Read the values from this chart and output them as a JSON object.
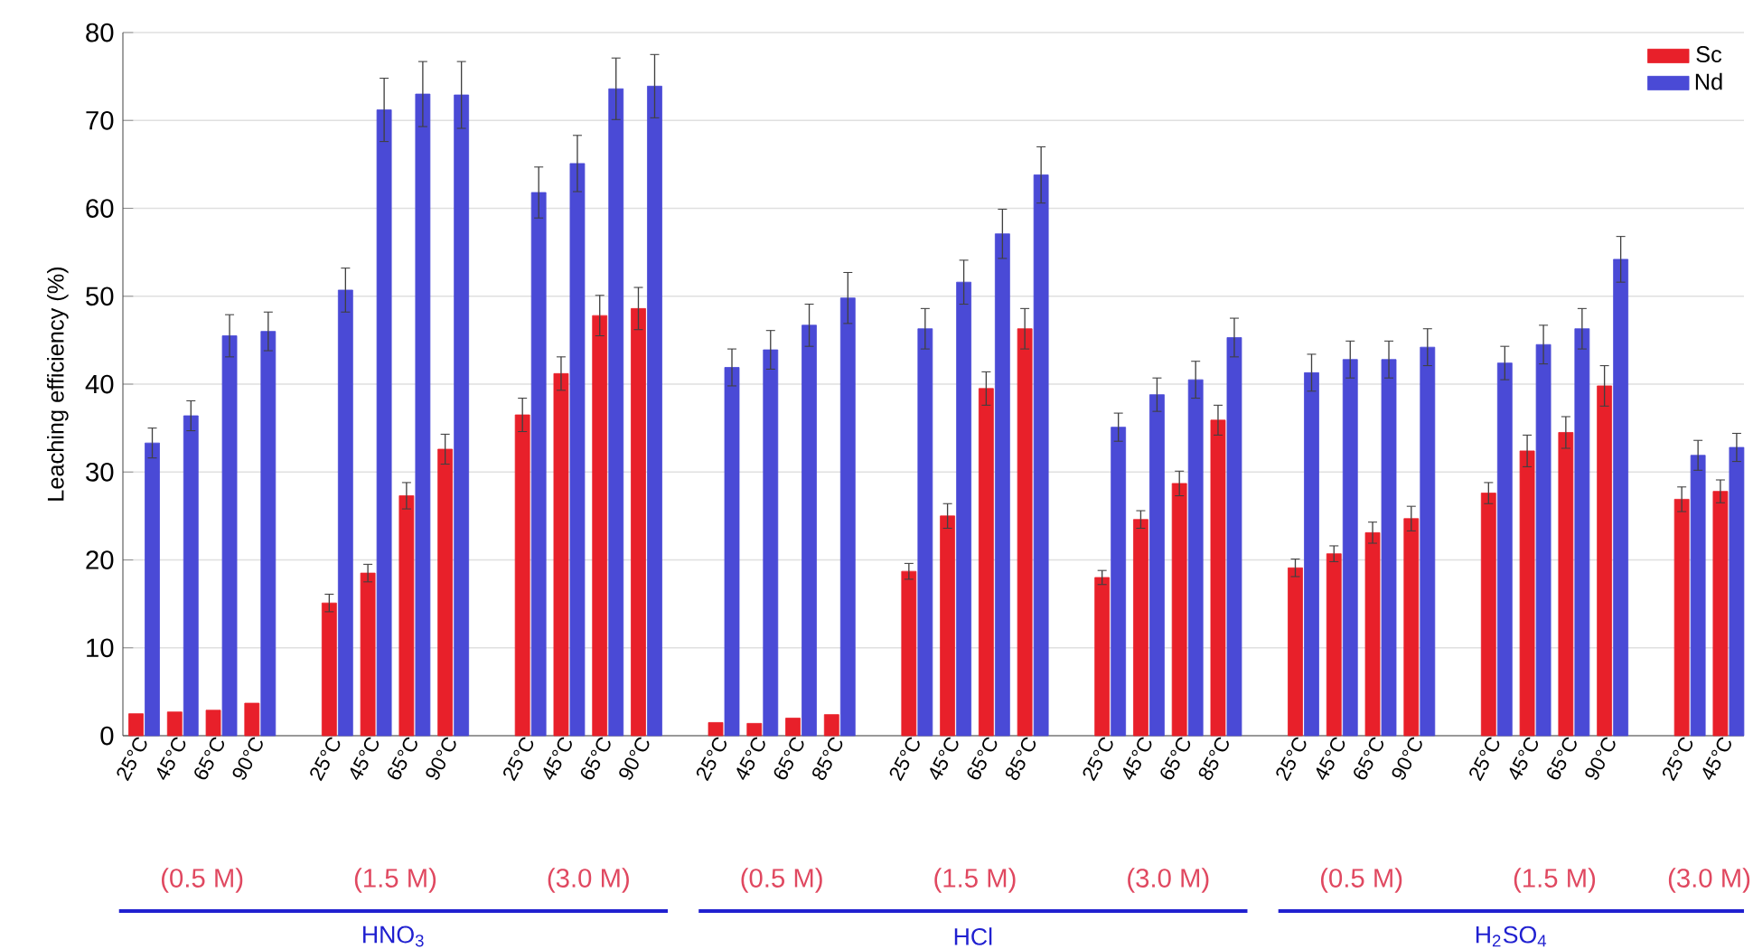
{
  "chart_data": {
    "type": "bar",
    "ylabel": "Leaching efficiency (%)",
    "categories": [
      "25°C",
      "45°C",
      "65°C",
      "90°C",
      null,
      "25°C",
      "45°C",
      "65°C",
      "90°C",
      null,
      "25°C",
      "45°C",
      "65°C",
      "90°C",
      null,
      "25°C",
      "45°C",
      "65°C",
      "85°C",
      null,
      "25°C",
      "45°C",
      "65°C",
      "85°C",
      null,
      "25°C",
      "45°C",
      "65°C",
      "85°C",
      null,
      "25°C",
      "45°C",
      "65°C",
      "90°C",
      null,
      "25°C",
      "45°C",
      "65°C",
      "90°C",
      null,
      "25°C",
      "45°C"
    ],
    "series": [
      {
        "name": "Sc",
        "color": "#e8202a",
        "values": [
          2.5,
          2.7,
          2.9,
          3.7,
          null,
          15.1,
          18.5,
          27.3,
          32.6,
          null,
          36.5,
          41.2,
          47.8,
          48.6,
          null,
          1.5,
          1.4,
          2.0,
          2.4,
          null,
          18.7,
          25.0,
          39.5,
          46.3,
          null,
          18.0,
          24.6,
          28.7,
          35.9,
          null,
          19.1,
          20.7,
          23.1,
          24.7,
          null,
          27.6,
          32.4,
          34.5,
          39.8,
          null,
          26.9,
          27.8
        ],
        "errors": [
          null,
          null,
          null,
          null,
          null,
          1.0,
          1.0,
          1.5,
          1.7,
          null,
          1.9,
          1.9,
          2.3,
          2.4,
          null,
          null,
          null,
          null,
          null,
          null,
          0.9,
          1.4,
          1.9,
          2.3,
          null,
          0.8,
          1.0,
          1.4,
          1.7,
          null,
          1.0,
          0.9,
          1.2,
          1.4,
          null,
          1.2,
          1.8,
          1.8,
          2.3,
          null,
          1.4,
          1.3
        ]
      },
      {
        "name": "Nd",
        "color": "#4a4ad6",
        "values": [
          33.3,
          36.4,
          45.5,
          46.0,
          null,
          50.7,
          71.2,
          73.0,
          72.9,
          null,
          61.8,
          65.1,
          73.6,
          73.9,
          null,
          41.9,
          43.9,
          46.7,
          49.8,
          null,
          46.3,
          51.6,
          57.1,
          63.8,
          null,
          35.1,
          38.8,
          40.5,
          45.3,
          null,
          41.3,
          42.8,
          42.8,
          44.2,
          null,
          42.4,
          44.5,
          46.3,
          54.2,
          null,
          31.9,
          32.8
        ],
        "errors": [
          1.7,
          1.7,
          2.4,
          2.2,
          null,
          2.5,
          3.6,
          3.7,
          3.8,
          null,
          2.9,
          3.2,
          3.5,
          3.6,
          null,
          2.1,
          2.2,
          2.4,
          2.9,
          null,
          2.3,
          2.5,
          2.8,
          3.2,
          null,
          1.6,
          1.9,
          2.1,
          2.2,
          null,
          2.1,
          2.1,
          2.1,
          2.1,
          null,
          1.9,
          2.2,
          2.3,
          2.6,
          null,
          1.7,
          1.6
        ]
      }
    ],
    "ylim": [
      0,
      80
    ],
    "yticks": [
      0,
      10,
      20,
      30,
      40,
      50,
      60,
      70,
      80
    ],
    "grid": "y",
    "legend": "top right",
    "annotations": [
      "(0.5 M)",
      "(1.5 M)",
      "(3.0 M)",
      "(0.5 M)",
      "(1.5 M)",
      "(3.0 M)",
      "(0.5 M)",
      "(1.5 M)",
      "(3.0 M)",
      "HNO$_{3}$",
      "HCl",
      "H$_{2}$SO$_{4}$"
    ]
  }
}
